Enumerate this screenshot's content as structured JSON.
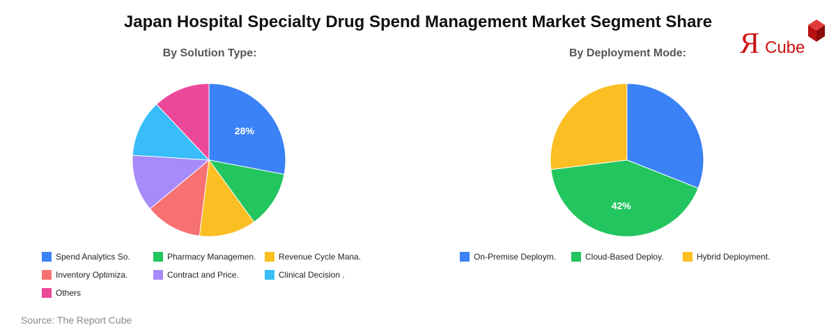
{
  "title": "Japan Hospital Specialty Drug Spend Management Market Segment Share",
  "logo": {
    "mark": "Я",
    "text": "Cube",
    "mark_color": "#cc1111",
    "text_color": "#cc1111",
    "cube_color": "#cc1111"
  },
  "source": "Source: The Report Cube",
  "chart_data": [
    {
      "type": "pie",
      "title": "By Solution Type:",
      "categories": [
        "Spend Analytics So.",
        "Pharmacy Managemen.",
        "Revenue Cycle Mana.",
        "Inventory Optimiza.",
        "Contract and Price.",
        "Clinical Decision .",
        "Others"
      ],
      "values": [
        28,
        12,
        12,
        12,
        12,
        12,
        12
      ],
      "colors": [
        "#3b82f6",
        "#22c55e",
        "#fbbf24",
        "#f87171",
        "#a78bfa",
        "#38bdf8",
        "#ec4899"
      ],
      "data_labels": [
        "28%",
        "",
        "",
        "",
        "",
        "",
        ""
      ],
      "legend_position": "bottom"
    },
    {
      "type": "pie",
      "title": "By Deployment Mode:",
      "categories": [
        "On-Premise Deploym.",
        "Cloud-Based Deploy.",
        "Hybrid Deployment."
      ],
      "values": [
        31,
        42,
        27
      ],
      "colors": [
        "#3b82f6",
        "#22c55e",
        "#fbbf24"
      ],
      "data_labels": [
        "",
        "42%",
        ""
      ],
      "legend_position": "bottom"
    }
  ]
}
